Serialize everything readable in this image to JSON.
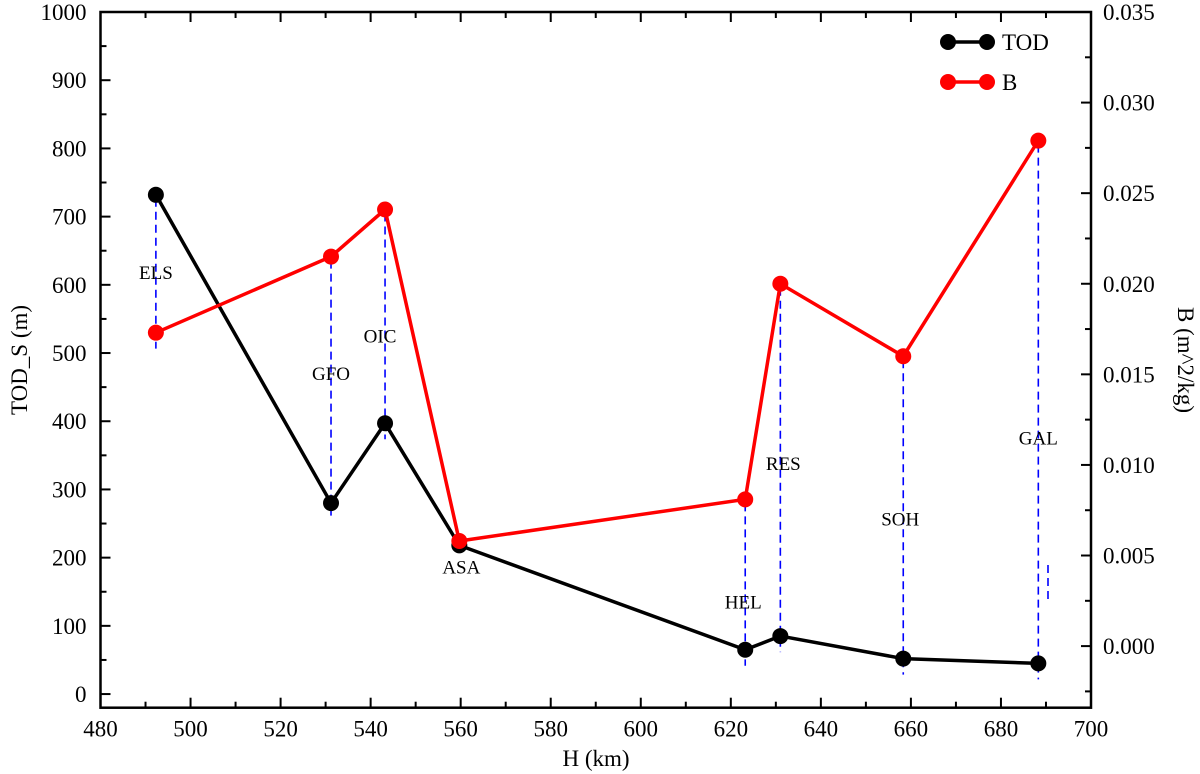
{
  "chart_data": {
    "type": "line",
    "xlabel": "H (km)",
    "ylabel": "TOD_S (m)",
    "y2label": "B (m^2/kg)",
    "xlim": [
      480,
      700
    ],
    "ylim": [
      -20,
      1000
    ],
    "y2lim": [
      -0.0034,
      0.035
    ],
    "xticks": [
      480,
      500,
      520,
      540,
      560,
      580,
      600,
      620,
      640,
      660,
      680,
      700
    ],
    "yticks": [
      0,
      100,
      200,
      300,
      400,
      500,
      600,
      700,
      800,
      900,
      1000
    ],
    "y2ticks": [
      "0.000",
      "0.005",
      "0.010",
      "0.015",
      "0.020",
      "0.025",
      "0.030",
      "0.035"
    ],
    "grid": false,
    "legend_placement": "top-right",
    "labels": [
      "ELS",
      "GFO",
      "OIC",
      "ASA",
      "HEL",
      "RES",
      "SOH",
      "GAL"
    ],
    "x": [
      492.3,
      531.2,
      543.2,
      559.7,
      623.2,
      631.0,
      658.3,
      688.3
    ],
    "series": [
      {
        "name": "TOD",
        "axis": "left",
        "color": "#000000",
        "values": [
          732,
          280,
          397,
          218,
          65,
          85,
          52,
          45
        ]
      },
      {
        "name": "B",
        "axis": "right",
        "color": "#ff0000",
        "values": [
          0.0173,
          0.0215,
          0.0241,
          0.0058,
          0.0081,
          0.02,
          0.016,
          0.0279
        ]
      }
    ],
    "connector_color": "#0000ff"
  }
}
